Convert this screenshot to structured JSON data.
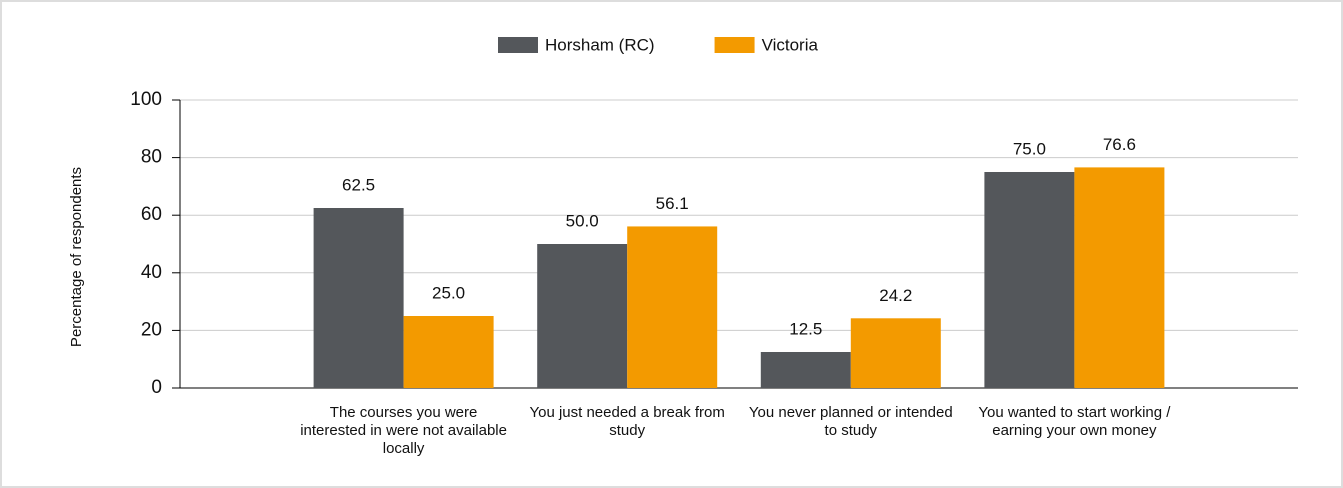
{
  "chart_data": {
    "type": "bar",
    "y_label": "Percentage of respondents",
    "categories": [
      "The courses you were interested in were not available locally",
      "You just needed a break from study",
      "You never planned or intended to study",
      "You wanted to start working / earning your own money"
    ],
    "series": [
      {
        "name": "Horsham (RC)",
        "color": "#54575b",
        "values": [
          62.5,
          50,
          12.5,
          75
        ],
        "value_labels": [
          "62.5",
          "50.0",
          "12.5",
          "75.0"
        ]
      },
      {
        "name": "Victoria",
        "color": "#f39a00",
        "values": [
          25,
          56.1,
          24.2,
          76.6
        ],
        "value_labels": [
          "25.0",
          "56.1",
          "24.2",
          "76.6"
        ]
      }
    ],
    "ylim": [
      0,
      100
    ],
    "yticks": [
      0,
      20,
      40,
      60,
      80,
      100
    ],
    "grid": true,
    "legend": "top"
  }
}
